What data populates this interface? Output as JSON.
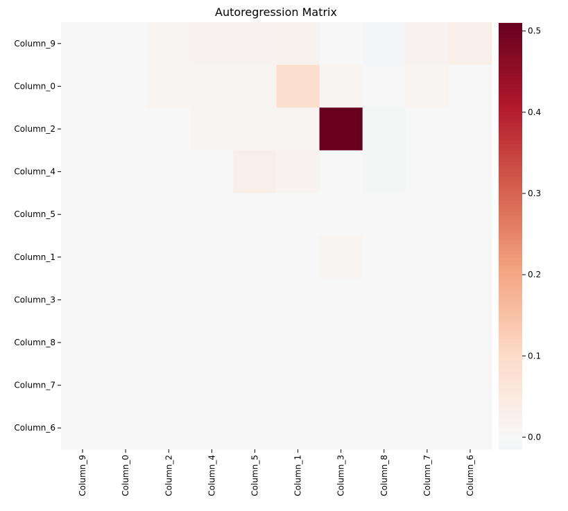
{
  "chart_data": {
    "type": "heatmap",
    "title": "Autoregression Matrix",
    "xlabel": "",
    "ylabel": "",
    "rows": [
      "Column_9",
      "Column_0",
      "Column_2",
      "Column_4",
      "Column_5",
      "Column_1",
      "Column_3",
      "Column_8",
      "Column_7",
      "Column_6"
    ],
    "columns": [
      "Column_9",
      "Column_0",
      "Column_2",
      "Column_4",
      "Column_5",
      "Column_1",
      "Column_3",
      "Column_8",
      "Column_7",
      "Column_6"
    ],
    "values": [
      [
        0.0,
        0.0,
        0.01,
        0.015,
        0.015,
        0.02,
        0.0,
        -0.012,
        0.015,
        0.03
      ],
      [
        0.0,
        0.0,
        0.012,
        0.01,
        0.01,
        0.09,
        0.01,
        -0.003,
        0.012,
        0.0
      ],
      [
        0.0,
        0.0,
        0.0,
        0.012,
        0.012,
        0.01,
        0.51,
        -0.008,
        0.0,
        0.0
      ],
      [
        0.0,
        0.0,
        0.0,
        0.0,
        0.03,
        0.015,
        0.0,
        -0.008,
        0.0,
        0.0
      ],
      [
        0.0,
        0.0,
        0.0,
        0.0,
        0.0,
        0.0,
        0.0,
        0.0,
        0.0,
        0.0
      ],
      [
        0.0,
        0.0,
        0.0,
        0.0,
        0.0,
        0.0,
        0.01,
        0.0,
        0.0,
        0.0
      ],
      [
        0.0,
        0.0,
        0.0,
        0.0,
        0.0,
        0.0,
        0.0,
        0.0,
        0.0,
        0.0
      ],
      [
        0.0,
        0.0,
        0.0,
        0.0,
        0.0,
        0.0,
        0.0,
        0.0,
        0.0,
        0.0
      ],
      [
        0.0,
        0.0,
        0.0,
        0.0,
        0.0,
        0.0,
        0.0,
        0.0,
        0.0,
        0.0
      ],
      [
        0.0,
        0.0,
        0.0,
        0.0,
        0.0,
        0.0,
        0.0,
        0.0,
        0.0,
        0.0
      ]
    ],
    "colorbar": {
      "vmin": -0.015,
      "vmax": 0.51,
      "center": 0.0,
      "colormap": "RdBu_r",
      "ticks": [
        0.0,
        0.1,
        0.2,
        0.3,
        0.4,
        0.5
      ],
      "tick_labels": [
        "0.0",
        "0.1",
        "0.2",
        "0.3",
        "0.4",
        "0.5"
      ]
    },
    "grid": false,
    "legend": "right colorbar"
  }
}
